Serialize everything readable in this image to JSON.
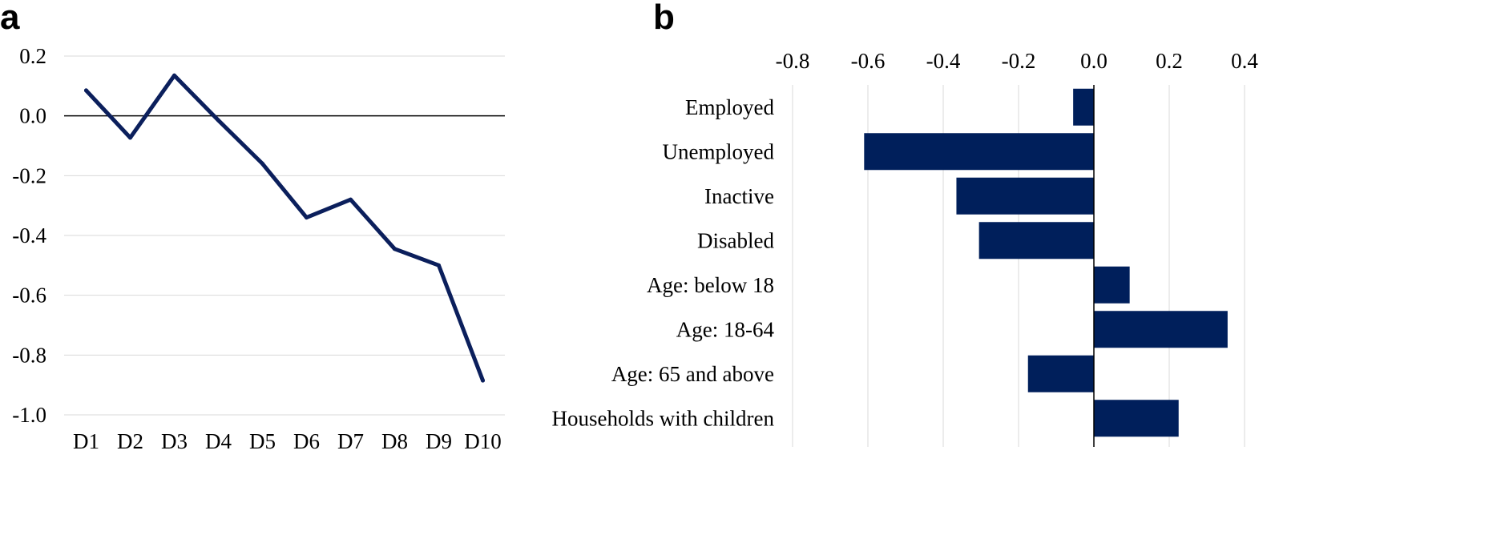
{
  "panels": {
    "a_label": "a",
    "b_label": "b"
  },
  "chart_data": [
    {
      "type": "line",
      "panel": "a",
      "categories": [
        "D1",
        "D2",
        "D3",
        "D4",
        "D5",
        "D6",
        "D7",
        "D8",
        "D9",
        "D10"
      ],
      "values": [
        0.085,
        -0.073,
        0.135,
        -0.015,
        -0.16,
        -0.34,
        -0.28,
        -0.445,
        -0.5,
        -0.885
      ],
      "yticks": [
        0.2,
        0.0,
        -0.2,
        -0.4,
        -0.6,
        -0.8,
        -1.0
      ],
      "ytick_labels": [
        "0.2",
        "0.0",
        "-0.2",
        "-0.4",
        "-0.6",
        "-0.8",
        "-1.0"
      ],
      "ylim": [
        -1.0,
        0.2
      ],
      "grid": true,
      "color": "#0b1f5c"
    },
    {
      "type": "bar",
      "orientation": "horizontal",
      "panel": "b",
      "categories": [
        "Employed",
        "Unemployed",
        "Inactive",
        "Disabled",
        "Age: below 18",
        "Age: 18-64",
        "Age: 65 and above",
        "Households with children"
      ],
      "values": [
        -0.055,
        -0.61,
        -0.365,
        -0.305,
        0.095,
        0.355,
        -0.175,
        0.225
      ],
      "xticks": [
        -0.8,
        -0.6,
        -0.4,
        -0.2,
        0.0,
        0.2,
        0.4
      ],
      "xtick_labels": [
        "-0.8",
        "-0.6",
        "-0.4",
        "-0.2",
        "0.0",
        "0.2",
        "0.4"
      ],
      "xlim": [
        -0.8,
        0.4
      ],
      "axis_position": "top",
      "grid": true,
      "color": "#001f5b"
    }
  ]
}
